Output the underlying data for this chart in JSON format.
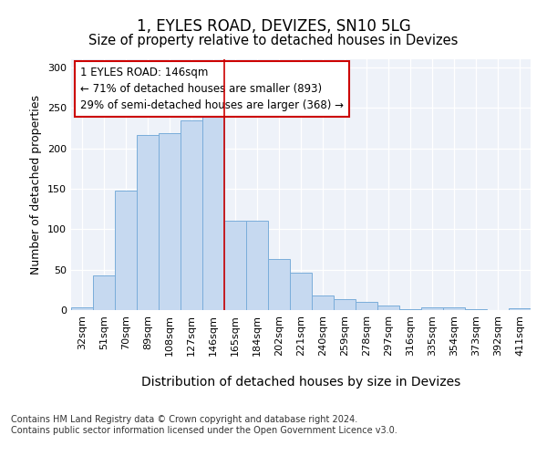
{
  "title1": "1, EYLES ROAD, DEVIZES, SN10 5LG",
  "title2": "Size of property relative to detached houses in Devizes",
  "xlabel": "Distribution of detached houses by size in Devizes",
  "ylabel": "Number of detached properties",
  "categories": [
    "32sqm",
    "51sqm",
    "70sqm",
    "89sqm",
    "108sqm",
    "127sqm",
    "146sqm",
    "165sqm",
    "184sqm",
    "202sqm",
    "221sqm",
    "240sqm",
    "259sqm",
    "278sqm",
    "297sqm",
    "316sqm",
    "335sqm",
    "354sqm",
    "373sqm",
    "392sqm",
    "411sqm"
  ],
  "values": [
    3,
    43,
    148,
    217,
    219,
    235,
    247,
    110,
    110,
    63,
    46,
    18,
    13,
    10,
    6,
    1,
    3,
    3,
    1,
    0,
    2
  ],
  "bar_color": "#c6d9f0",
  "bar_edge_color": "#7aadda",
  "highlight_index": 6,
  "highlight_line_color": "#cc0000",
  "annotation_line1": "1 EYLES ROAD: 146sqm",
  "annotation_line2": "← 71% of detached houses are smaller (893)",
  "annotation_line3": "29% of semi-detached houses are larger (368) →",
  "annotation_box_edge_color": "#cc0000",
  "annotation_box_face_color": "#ffffff",
  "ylim": [
    0,
    310
  ],
  "yticks": [
    0,
    50,
    100,
    150,
    200,
    250,
    300
  ],
  "background_color": "#eef2f9",
  "grid_color": "#ffffff",
  "footer_text": "Contains HM Land Registry data © Crown copyright and database right 2024.\nContains public sector information licensed under the Open Government Licence v3.0.",
  "title1_fontsize": 12,
  "title2_fontsize": 10.5,
  "xlabel_fontsize": 10,
  "ylabel_fontsize": 9,
  "tick_fontsize": 8,
  "footer_fontsize": 7
}
